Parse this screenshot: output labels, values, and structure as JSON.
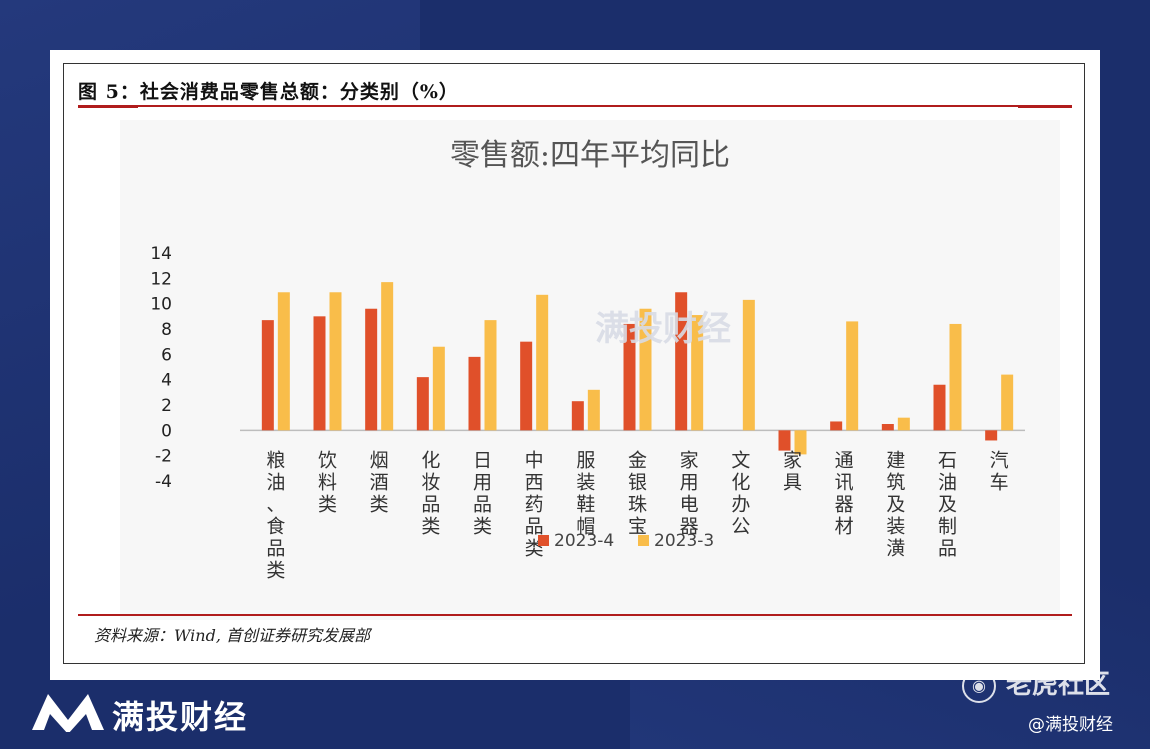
{
  "figure_title": "图 5：社会消费品零售总额：分类别（%）",
  "source": "资料来源：Wind, 首创证券研究发展部",
  "watermark_text": "满投财经",
  "brand": {
    "name": "满投财经",
    "tiger": "老虎社区",
    "handle": "@满投财经"
  },
  "colors": {
    "series1": "#e0502a",
    "series2": "#f9bd4a",
    "rule": "#b01c1c"
  },
  "chart_data": {
    "type": "bar",
    "title": "零售额:四年平均同比",
    "categories": [
      "粮油、食品类",
      "饮料类",
      "烟酒类",
      "化妆品类",
      "日用品类",
      "中西药品类",
      "服装鞋帽",
      "金银珠宝",
      "家用电器",
      "文化办公",
      "家具",
      "通讯器材",
      "建筑及装潢",
      "石油及制品",
      "汽车"
    ],
    "series": [
      {
        "name": "2023-4",
        "values": [
          8.7,
          9.0,
          9.6,
          4.2,
          5.8,
          7.0,
          2.3,
          8.4,
          10.9,
          0.0,
          -1.6,
          0.7,
          0.5,
          3.6,
          -0.8
        ]
      },
      {
        "name": "2023-3",
        "values": [
          10.9,
          10.9,
          11.7,
          6.6,
          8.7,
          10.7,
          3.2,
          9.6,
          9.1,
          10.3,
          -1.9,
          8.6,
          1.0,
          8.4,
          4.4
        ]
      }
    ],
    "yticks": [
      "14",
      "12",
      "10",
      "8",
      "6",
      "4",
      "2",
      "0",
      "-2",
      "-4"
    ],
    "ylim": [
      -4,
      14
    ],
    "legend_position": "bottom",
    "grid": false
  }
}
